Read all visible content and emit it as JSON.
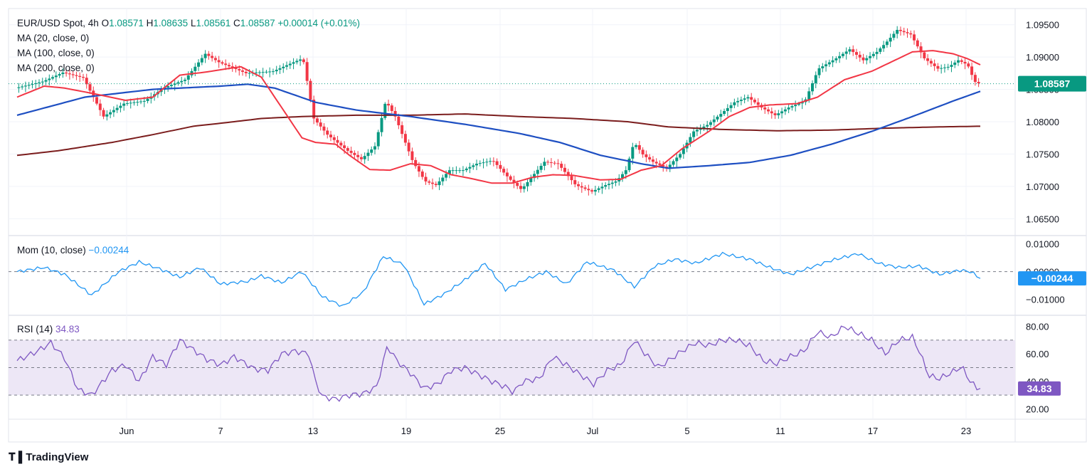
{
  "header": {
    "symbol": "EUR/USD Spot, 4h",
    "ohlc": [
      {
        "label": "O",
        "value": "1.08571"
      },
      {
        "label": "H",
        "value": "1.08635"
      },
      {
        "label": "L",
        "value": "1.08561"
      },
      {
        "label": "C",
        "value": "1.08587"
      }
    ],
    "change": "+0.00014 (+0.01%)",
    "ma_labels": [
      "MA (20, close, 0)",
      "MA (100, close, 0)",
      "MA (200, close, 0)"
    ]
  },
  "colors": {
    "up": "#089981",
    "down": "#f23645",
    "ma20": "#f23645",
    "ma100": "#1e4fc2",
    "ma200": "#7b1d1d",
    "momentum": "#2196f3",
    "rsi": "#7e57c2",
    "rsi_band": "#ede7f6",
    "price_tag": "#089981",
    "mom_tag": "#2196f3",
    "rsi_tag": "#7e57c2"
  },
  "momentum": {
    "label": "Mom (10, close)",
    "value": "−0.00244",
    "tag": "−0.00244",
    "ticks": [
      "0.01000",
      "0.00000",
      "−0.01000"
    ]
  },
  "rsi": {
    "label": "RSI (14)",
    "value": "34.83",
    "tag": "34.83",
    "ticks": [
      "80.00",
      "60.00",
      "40.00",
      "20.00"
    ]
  },
  "brand": {
    "name": "TradingView"
  },
  "chart_data": {
    "type": "candlestick",
    "timeframe": "4h",
    "price_axis": {
      "ticks": [
        1.095,
        1.09,
        1.085,
        1.08,
        1.075,
        1.07,
        1.065
      ],
      "tick_labels": [
        "1.09500",
        "1.09000",
        "1.08500",
        "1.08000",
        "1.07500",
        "1.07000",
        "1.06500"
      ],
      "range": [
        1.0625,
        1.0975
      ],
      "last_price": "1.08587"
    },
    "x_axis": {
      "labels": [
        "Jun",
        "7",
        "13",
        "19",
        "25",
        "Jul",
        "5",
        "11",
        "17",
        "23"
      ]
    },
    "price_anchors": [
      [
        0,
        1.0852
      ],
      [
        2,
        1.0862
      ],
      [
        3.5,
        1.0876
      ],
      [
        5,
        1.0868
      ],
      [
        6.5,
        1.0808
      ],
      [
        8,
        1.0828
      ],
      [
        9.5,
        1.0832
      ],
      [
        11,
        1.0853
      ],
      [
        12.5,
        1.0865
      ],
      [
        14,
        1.0905
      ],
      [
        15,
        1.0892
      ],
      [
        17,
        1.0875
      ],
      [
        19,
        1.0878
      ],
      [
        20.5,
        1.0892
      ],
      [
        21.2,
        1.0898
      ],
      [
        22,
        1.0805
      ],
      [
        23,
        1.078
      ],
      [
        24.5,
        1.0755
      ],
      [
        25.5,
        1.0742
      ],
      [
        26.5,
        1.0762
      ],
      [
        27.3,
        1.0832
      ],
      [
        28,
        1.0808
      ],
      [
        29.3,
        1.0738
      ],
      [
        30.2,
        1.0708
      ],
      [
        31,
        1.0702
      ],
      [
        32,
        1.0725
      ],
      [
        33,
        1.0725
      ],
      [
        34,
        1.0735
      ],
      [
        35.2,
        1.074
      ],
      [
        36.4,
        1.0712
      ],
      [
        37.3,
        1.0695
      ],
      [
        38.2,
        1.0718
      ],
      [
        39,
        1.0738
      ],
      [
        40,
        1.0735
      ],
      [
        41.3,
        1.0702
      ],
      [
        42.5,
        1.0692
      ],
      [
        43.5,
        1.0702
      ],
      [
        44.3,
        1.0708
      ],
      [
        45,
        1.0725
      ],
      [
        45.6,
        1.0768
      ],
      [
        46.3,
        1.0748
      ],
      [
        47,
        1.0738
      ],
      [
        48,
        1.0728
      ],
      [
        49,
        1.075
      ],
      [
        50,
        1.0785
      ],
      [
        51,
        1.0795
      ],
      [
        52,
        1.0812
      ],
      [
        53,
        1.083
      ],
      [
        54,
        1.0838
      ],
      [
        55,
        1.0822
      ],
      [
        56,
        1.081
      ],
      [
        57,
        1.0822
      ],
      [
        58.2,
        1.0832
      ],
      [
        59.2,
        1.0882
      ],
      [
        60.5,
        1.0898
      ],
      [
        61.5,
        1.0912
      ],
      [
        62.5,
        1.0895
      ],
      [
        63.5,
        1.0908
      ],
      [
        64.3,
        1.0925
      ],
      [
        65,
        1.0942
      ],
      [
        66,
        1.0935
      ],
      [
        67,
        1.0898
      ],
      [
        68,
        1.0882
      ],
      [
        68.8,
        1.0885
      ],
      [
        69.5,
        1.0895
      ],
      [
        70.2,
        1.0888
      ],
      [
        70.7,
        1.0862
      ],
      [
        71.05,
        1.0859
      ]
    ],
    "ma20_anchors": [
      [
        0,
        1.0838
      ],
      [
        2,
        1.0855
      ],
      [
        3.5,
        1.0852
      ],
      [
        5.5,
        1.0844
      ],
      [
        8,
        1.0833
      ],
      [
        10,
        1.0838
      ],
      [
        12,
        1.0872
      ],
      [
        14,
        1.0877
      ],
      [
        15.5,
        1.0882
      ],
      [
        16.5,
        1.0885
      ],
      [
        18,
        1.0869
      ],
      [
        19.5,
        1.0822
      ],
      [
        21,
        1.0775
      ],
      [
        22,
        1.0768
      ],
      [
        23.5,
        1.0765
      ],
      [
        24.5,
        1.0748
      ],
      [
        26,
        1.0726
      ],
      [
        27.5,
        1.0725
      ],
      [
        29,
        1.0735
      ],
      [
        30.5,
        1.0732
      ],
      [
        32,
        1.0718
      ],
      [
        33.5,
        1.0712
      ],
      [
        35,
        1.0705
      ],
      [
        36.5,
        1.0705
      ],
      [
        38,
        1.0714
      ],
      [
        39.5,
        1.0718
      ],
      [
        41,
        1.0717
      ],
      [
        43,
        1.071
      ],
      [
        44.5,
        1.0711
      ],
      [
        46,
        1.0725
      ],
      [
        47.5,
        1.0732
      ],
      [
        49,
        1.0758
      ],
      [
        51,
        1.0785
      ],
      [
        52.5,
        1.0808
      ],
      [
        54,
        1.0822
      ],
      [
        55.5,
        1.0826
      ],
      [
        57.5,
        1.0828
      ],
      [
        59,
        1.0838
      ],
      [
        61,
        1.0865
      ],
      [
        63,
        1.0878
      ],
      [
        64.5,
        1.0893
      ],
      [
        66,
        1.0908
      ],
      [
        67.5,
        1.091
      ],
      [
        69,
        1.0905
      ],
      [
        70,
        1.0898
      ],
      [
        71,
        1.0888
      ]
    ],
    "ma100_anchors": [
      [
        0,
        1.081
      ],
      [
        5,
        1.0838
      ],
      [
        10,
        1.085
      ],
      [
        15,
        1.0855
      ],
      [
        17,
        1.0858
      ],
      [
        19,
        1.0852
      ],
      [
        22,
        1.083
      ],
      [
        25,
        1.0818
      ],
      [
        29,
        1.0808
      ],
      [
        33,
        1.0796
      ],
      [
        37,
        1.0782
      ],
      [
        40,
        1.0768
      ],
      [
        43,
        1.0748
      ],
      [
        46,
        1.0735
      ],
      [
        48,
        1.0728
      ],
      [
        51,
        1.0732
      ],
      [
        54,
        1.0737
      ],
      [
        57,
        1.0748
      ],
      [
        60,
        1.0765
      ],
      [
        63,
        1.0785
      ],
      [
        66,
        1.0808
      ],
      [
        69,
        1.0832
      ],
      [
        71,
        1.0847
      ]
    ],
    "ma200_anchors": [
      [
        0,
        1.0748
      ],
      [
        3,
        1.0755
      ],
      [
        7,
        1.0768
      ],
      [
        10,
        1.078
      ],
      [
        13,
        1.0793
      ],
      [
        16,
        1.08
      ],
      [
        18,
        1.0805
      ],
      [
        21,
        1.0808
      ],
      [
        25,
        1.081
      ],
      [
        29,
        1.081
      ],
      [
        33,
        1.0812
      ],
      [
        37,
        1.0808
      ],
      [
        41,
        1.0805
      ],
      [
        45,
        1.08
      ],
      [
        48,
        1.0792
      ],
      [
        52,
        1.0788
      ],
      [
        56,
        1.0786
      ],
      [
        60,
        1.0787
      ],
      [
        64,
        1.079
      ],
      [
        68,
        1.0792
      ],
      [
        71,
        1.0793
      ]
    ],
    "momentum_anchors": [
      [
        0,
        0.0
      ],
      [
        2,
        0.0015
      ],
      [
        3.5,
        -0.001
      ],
      [
        5.5,
        -0.0085
      ],
      [
        7.5,
        0.0
      ],
      [
        9,
        0.0035
      ],
      [
        10.5,
        0.001
      ],
      [
        12,
        -0.002
      ],
      [
        13.5,
        0.0015
      ],
      [
        15,
        -0.0045
      ],
      [
        17,
        -0.0035
      ],
      [
        18,
        -0.0015
      ],
      [
        19.5,
        -0.004
      ],
      [
        21,
        0.0
      ],
      [
        22.5,
        -0.009
      ],
      [
        24,
        -0.0125
      ],
      [
        25.5,
        -0.0075
      ],
      [
        27,
        0.0055
      ],
      [
        28.5,
        0.0025
      ],
      [
        30,
        -0.0118
      ],
      [
        31.5,
        -0.008
      ],
      [
        33,
        -0.003
      ],
      [
        34.5,
        0.003
      ],
      [
        36,
        -0.0065
      ],
      [
        37.5,
        -0.0028
      ],
      [
        39,
        0.0
      ],
      [
        40.5,
        -0.0045
      ],
      [
        42,
        0.0035
      ],
      [
        44,
        0.0005
      ],
      [
        45.5,
        -0.0055
      ],
      [
        47,
        0.002
      ],
      [
        48.5,
        0.0045
      ],
      [
        50,
        0.003
      ],
      [
        52,
        0.0065
      ],
      [
        54,
        0.0045
      ],
      [
        55.5,
        0.0015
      ],
      [
        57,
        -0.001
      ],
      [
        58.5,
        0.0015
      ],
      [
        60,
        0.004
      ],
      [
        62,
        0.0065
      ],
      [
        63.5,
        0.003
      ],
      [
        65,
        0.0015
      ],
      [
        66.5,
        0.002
      ],
      [
        68,
        -0.001
      ],
      [
        69.5,
        0.0005
      ],
      [
        70.3,
        0.0
      ],
      [
        71,
        -0.00244
      ]
    ],
    "rsi_anchors": [
      [
        0,
        55
      ],
      [
        1.5,
        62
      ],
      [
        2.5,
        68
      ],
      [
        3.5,
        57
      ],
      [
        4.5,
        34
      ],
      [
        5.5,
        30
      ],
      [
        7,
        48
      ],
      [
        8,
        52
      ],
      [
        9,
        40
      ],
      [
        10,
        58
      ],
      [
        11,
        52
      ],
      [
        12,
        70
      ],
      [
        13,
        63
      ],
      [
        14,
        56
      ],
      [
        15,
        52
      ],
      [
        16,
        58
      ],
      [
        17.5,
        49
      ],
      [
        18.5,
        48
      ],
      [
        19.5,
        60
      ],
      [
        20.5,
        62
      ],
      [
        21.5,
        60
      ],
      [
        22,
        40
      ],
      [
        22.5,
        29
      ],
      [
        23.5,
        27
      ],
      [
        24.5,
        30
      ],
      [
        25.5,
        31
      ],
      [
        26.5,
        36
      ],
      [
        27.3,
        66
      ],
      [
        28,
        55
      ],
      [
        29,
        46
      ],
      [
        30,
        35
      ],
      [
        31,
        38
      ],
      [
        32,
        48
      ],
      [
        33,
        50
      ],
      [
        34,
        45
      ],
      [
        35,
        40
      ],
      [
        36,
        36
      ],
      [
        36.6,
        32
      ],
      [
        37.3,
        40
      ],
      [
        38.5,
        42
      ],
      [
        39.5,
        58
      ],
      [
        40.5,
        52
      ],
      [
        41.5,
        45
      ],
      [
        42.5,
        38
      ],
      [
        43.5,
        48
      ],
      [
        44.5,
        52
      ],
      [
        45.5,
        70
      ],
      [
        46.3,
        60
      ],
      [
        47.3,
        50
      ],
      [
        48,
        55
      ],
      [
        49,
        62
      ],
      [
        50,
        68
      ],
      [
        51,
        66
      ],
      [
        52,
        70
      ],
      [
        53,
        70
      ],
      [
        54,
        66
      ],
      [
        55,
        55
      ],
      [
        56,
        53
      ],
      [
        57,
        58
      ],
      [
        58,
        62
      ],
      [
        59,
        76
      ],
      [
        60,
        72
      ],
      [
        61,
        80
      ],
      [
        62,
        75
      ],
      [
        63,
        70
      ],
      [
        64,
        60
      ],
      [
        65,
        70
      ],
      [
        66,
        72
      ],
      [
        66.5,
        62
      ],
      [
        67.2,
        44
      ],
      [
        68,
        42
      ],
      [
        69.2,
        48
      ],
      [
        69.6,
        51
      ],
      [
        70.2,
        41
      ],
      [
        70.7,
        35
      ],
      [
        71.05,
        34.83
      ]
    ]
  }
}
